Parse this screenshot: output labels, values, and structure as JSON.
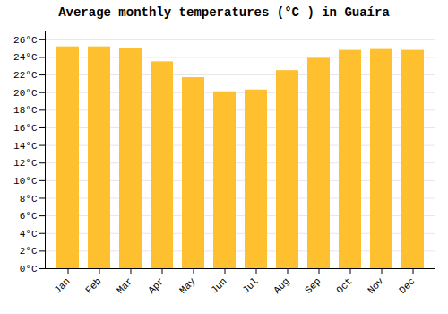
{
  "chart_data": {
    "type": "bar",
    "title": "Average monthly temperatures (°C ) in Guaíra",
    "categories": [
      "Jan",
      "Feb",
      "Mar",
      "Apr",
      "May",
      "Jun",
      "Jul",
      "Aug",
      "Sep",
      "Oct",
      "Nov",
      "Dec"
    ],
    "values": [
      25.2,
      25.2,
      25.0,
      23.5,
      21.7,
      20.1,
      20.3,
      22.5,
      23.9,
      24.8,
      24.9,
      24.8
    ],
    "color": "#FFC030",
    "ylim": [
      0,
      27
    ],
    "yticks": [
      {
        "value": 0,
        "label": "0°C"
      },
      {
        "value": 2,
        "label": "2°C"
      },
      {
        "value": 4,
        "label": "4°C"
      },
      {
        "value": 6,
        "label": "6°C"
      },
      {
        "value": 8,
        "label": "8°C"
      },
      {
        "value": 10,
        "label": "10°C"
      },
      {
        "value": 12,
        "label": "12°C"
      },
      {
        "value": 14,
        "label": "14°C"
      },
      {
        "value": 16,
        "label": "16°C"
      },
      {
        "value": 18,
        "label": "18°C"
      },
      {
        "value": 20,
        "label": "20°C"
      },
      {
        "value": 22,
        "label": "22°C"
      },
      {
        "value": 24,
        "label": "24°C"
      },
      {
        "value": 26,
        "label": "26°C"
      }
    ],
    "grid": true
  }
}
